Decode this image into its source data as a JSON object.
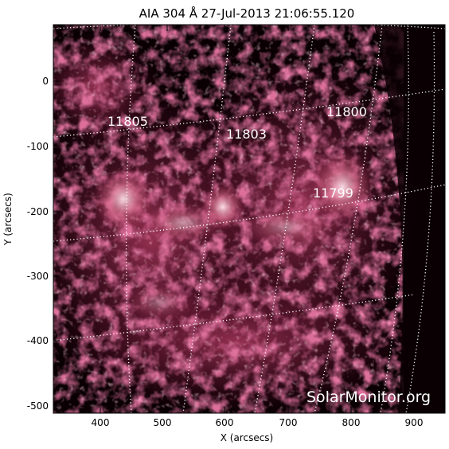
{
  "title": "AIA 304 Å 27-Jul-2013 21:06:55.120",
  "x_axis": {
    "label": "X (arcsecs)",
    "ticks": [
      "400",
      "500",
      "600",
      "700",
      "800",
      "900"
    ]
  },
  "y_axis": {
    "label": "Y (arcsecs)",
    "ticks": [
      "0",
      "-100",
      "-200",
      "-300",
      "-400",
      "-500"
    ]
  },
  "active_regions": [
    "11805",
    "11803",
    "11800",
    "11799"
  ],
  "watermark": "SolarMonitor.org",
  "colors": {
    "background": "#0a0003",
    "plasma": "#b0305a",
    "bright": "#f2c4d4",
    "grid": "#ffffff"
  }
}
